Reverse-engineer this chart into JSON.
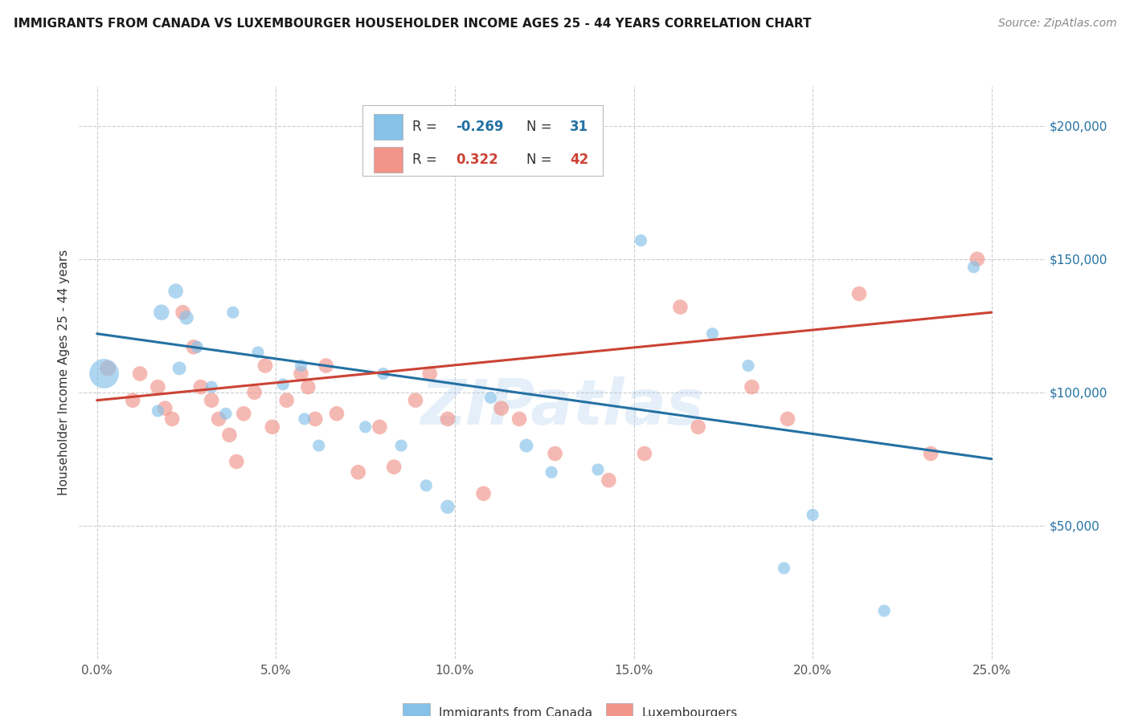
{
  "title": "IMMIGRANTS FROM CANADA VS LUXEMBOURGER HOUSEHOLDER INCOME AGES 25 - 44 YEARS CORRELATION CHART",
  "source": "Source: ZipAtlas.com",
  "ylabel": "Householder Income Ages 25 - 44 years",
  "xlabel_ticks": [
    "0.0%",
    "5.0%",
    "10.0%",
    "15.0%",
    "20.0%",
    "25.0%"
  ],
  "xlabel_vals": [
    0.0,
    0.05,
    0.1,
    0.15,
    0.2,
    0.25
  ],
  "ytick_labels": [
    "$50,000",
    "$100,000",
    "$150,000",
    "$200,000"
  ],
  "ytick_vals": [
    50000,
    100000,
    150000,
    200000
  ],
  "ylim": [
    0,
    215000
  ],
  "xlim": [
    -0.005,
    0.265
  ],
  "blue_R": -0.269,
  "blue_N": 31,
  "pink_R": 0.322,
  "pink_N": 42,
  "blue_color": "#85c1e9",
  "pink_color": "#f1948a",
  "blue_line_color": "#2471a3",
  "pink_line_color": "#cb4335",
  "watermark": "ZIPatlas",
  "blue_line_x0": 0.0,
  "blue_line_y0": 122000,
  "blue_line_x1": 0.25,
  "blue_line_y1": 75000,
  "pink_line_x0": 0.0,
  "pink_line_y0": 97000,
  "pink_line_x1": 0.25,
  "pink_line_y1": 130000,
  "blue_points_x": [
    0.002,
    0.018,
    0.022,
    0.025,
    0.017,
    0.023,
    0.028,
    0.032,
    0.036,
    0.038,
    0.045,
    0.052,
    0.057,
    0.062,
    0.058,
    0.075,
    0.08,
    0.085,
    0.092,
    0.098,
    0.11,
    0.12,
    0.127,
    0.14,
    0.152,
    0.172,
    0.182,
    0.192,
    0.2,
    0.22,
    0.245
  ],
  "blue_points_y": [
    107000,
    130000,
    138000,
    128000,
    93000,
    109000,
    117000,
    102000,
    92000,
    130000,
    115000,
    103000,
    110000,
    80000,
    90000,
    87000,
    107000,
    80000,
    65000,
    57000,
    98000,
    80000,
    70000,
    71000,
    157000,
    122000,
    110000,
    34000,
    54000,
    18000,
    147000
  ],
  "blue_sizes": [
    700,
    200,
    180,
    160,
    120,
    150,
    120,
    120,
    120,
    120,
    120,
    120,
    120,
    120,
    120,
    120,
    120,
    120,
    120,
    160,
    120,
    150,
    120,
    120,
    120,
    120,
    120,
    120,
    120,
    120,
    120
  ],
  "pink_points_x": [
    0.003,
    0.01,
    0.012,
    0.017,
    0.019,
    0.021,
    0.024,
    0.027,
    0.029,
    0.032,
    0.034,
    0.037,
    0.039,
    0.041,
    0.044,
    0.047,
    0.049,
    0.053,
    0.057,
    0.059,
    0.061,
    0.064,
    0.067,
    0.073,
    0.079,
    0.083,
    0.089,
    0.093,
    0.098,
    0.108,
    0.113,
    0.118,
    0.128,
    0.143,
    0.153,
    0.163,
    0.168,
    0.183,
    0.193,
    0.213,
    0.233,
    0.246
  ],
  "pink_points_y": [
    109000,
    97000,
    107000,
    102000,
    94000,
    90000,
    130000,
    117000,
    102000,
    97000,
    90000,
    84000,
    74000,
    92000,
    100000,
    110000,
    87000,
    97000,
    107000,
    102000,
    90000,
    110000,
    92000,
    70000,
    87000,
    72000,
    97000,
    107000,
    90000,
    62000,
    94000,
    90000,
    77000,
    67000,
    77000,
    132000,
    87000,
    102000,
    90000,
    137000,
    77000,
    150000
  ],
  "pink_sizes": [
    200,
    180,
    180,
    180,
    180,
    180,
    180,
    180,
    180,
    180,
    180,
    180,
    180,
    180,
    180,
    180,
    180,
    180,
    180,
    180,
    180,
    180,
    180,
    180,
    180,
    180,
    180,
    180,
    180,
    180,
    180,
    180,
    180,
    180,
    180,
    180,
    180,
    180,
    180,
    180,
    180,
    180
  ]
}
